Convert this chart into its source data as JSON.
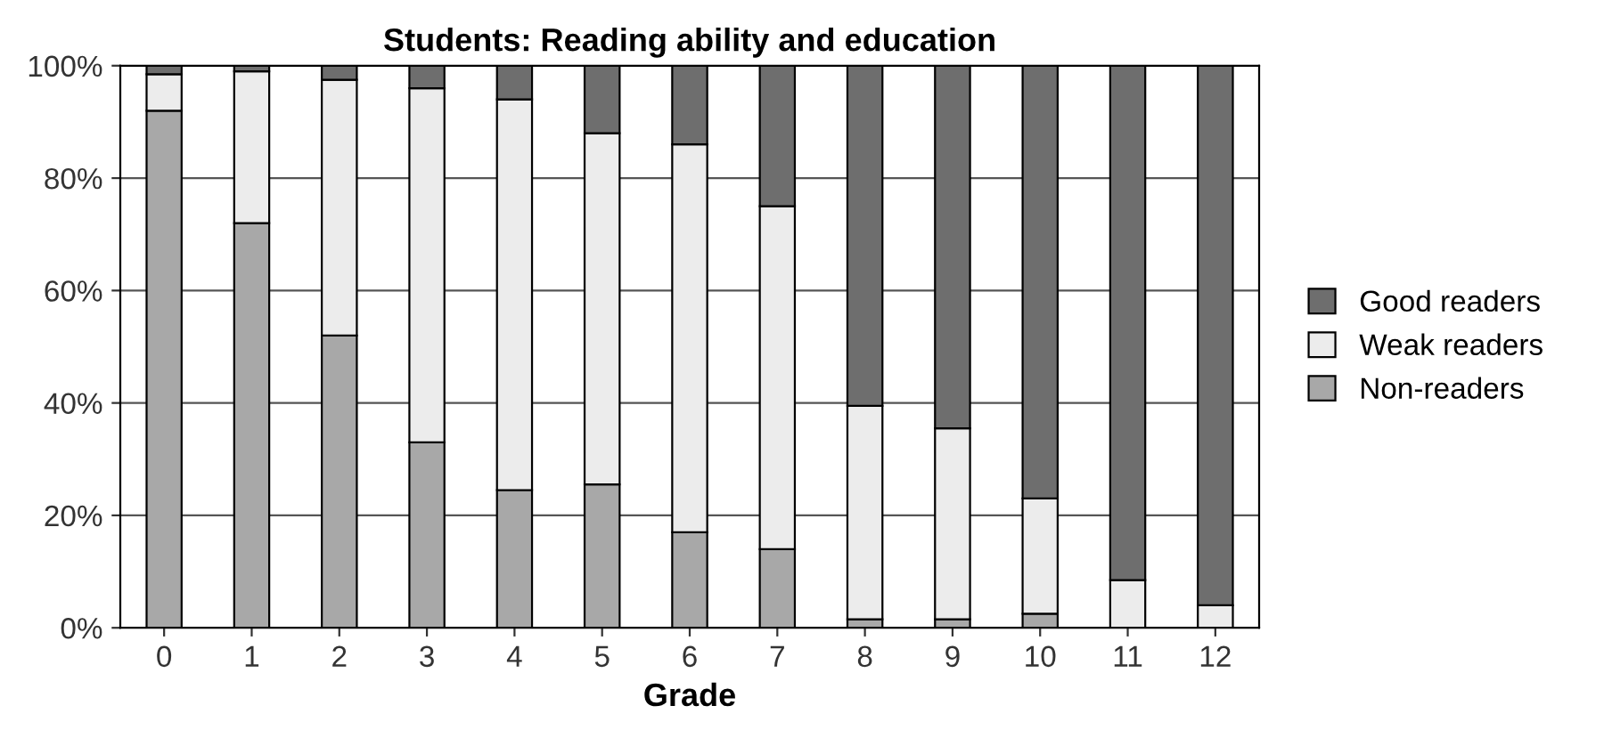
{
  "chart_data": {
    "type": "bar",
    "title": "Students: Reading ability and education",
    "xlabel": "Grade",
    "categories": [
      "0",
      "1",
      "2",
      "3",
      "4",
      "5",
      "6",
      "7",
      "8",
      "9",
      "10",
      "11",
      "12"
    ],
    "stacked": true,
    "series": [
      {
        "name": "Non-readers",
        "color": "#a8a8a8",
        "values": [
          92,
          72,
          52,
          33,
          24.5,
          25.5,
          17,
          14,
          1.5,
          1.5,
          2.5,
          0,
          null
        ]
      },
      {
        "name": "Weak readers",
        "color": "#ececec",
        "values": [
          6.5,
          27,
          45.5,
          63,
          69.5,
          62.5,
          69,
          61,
          38,
          34,
          20.5,
          8.5,
          4
        ]
      },
      {
        "name": "Good readers",
        "color": "#6e6e6e",
        "values": [
          1.5,
          1,
          2.5,
          4,
          6,
          12,
          14,
          25,
          60.5,
          64.5,
          77,
          91.5,
          96
        ]
      }
    ],
    "ylim": [
      0,
      100
    ],
    "yticks": [
      {
        "value": 0,
        "label": "0%"
      },
      {
        "value": 20,
        "label": "20%"
      },
      {
        "value": 40,
        "label": "40%"
      },
      {
        "value": 60,
        "label": "60%"
      },
      {
        "value": 80,
        "label": "80%"
      },
      {
        "value": 100,
        "label": "100%"
      }
    ],
    "grid": "y",
    "legend": "right"
  }
}
